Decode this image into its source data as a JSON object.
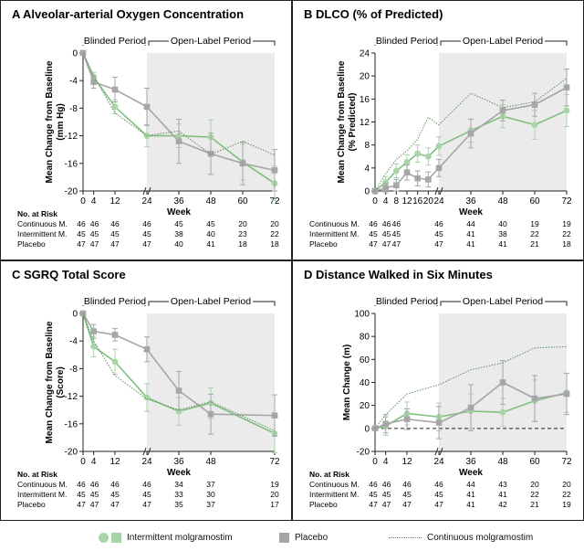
{
  "legend": {
    "intermittent": "Intermittent molgramostim",
    "placebo": "Placebo",
    "continuous": "Continuous molgramostim"
  },
  "colors": {
    "intermittent": "#a8d4a8",
    "intermittent_line": "#7fbf7f",
    "placebo": "#a6a6a6",
    "continuous": "#5a8f5a",
    "shade": "#ebebeb"
  },
  "chart_data": [
    {
      "type": "line",
      "panel_label": "A",
      "title": "Alveolar-arterial Oxygen Concentration",
      "xlabel": "Week",
      "ylabel": "Mean Change from Baseline (mm Hg)",
      "ylabel_lines": [
        "Mean Change from Baseline",
        "(mm Hg)"
      ],
      "x_ticks": [
        0,
        4,
        12,
        24,
        36,
        48,
        60,
        72
      ],
      "y_ticks": [
        0,
        -4,
        -8,
        -12,
        -16,
        -20
      ],
      "xlim": [
        0,
        72
      ],
      "ylim": [
        -20,
        0
      ],
      "zero_line": false,
      "blinded_label": "Blinded Period",
      "openlabel_label": "Open-Label Period",
      "series": [
        {
          "name": "Intermittent molgramostim",
          "x": [
            0,
            4,
            12,
            24,
            36,
            48,
            60,
            72
          ],
          "y": [
            0,
            -3.5,
            -7.8,
            -12.0,
            -12.0,
            -12.2,
            -15.8,
            -18.9
          ],
          "err": [
            0,
            0.7,
            1.0,
            1.6,
            1.7,
            2.5,
            2.6,
            2.5
          ],
          "marker": "circle"
        },
        {
          "name": "Placebo",
          "x": [
            0,
            4,
            12,
            24,
            36,
            48,
            60,
            72
          ],
          "y": [
            0,
            -4.2,
            -5.3,
            -7.8,
            -12.8,
            -14.6,
            -16.0,
            -17.0
          ],
          "err": [
            0,
            0.9,
            1.8,
            2.7,
            3.2,
            3.0,
            3.1,
            3.0
          ],
          "marker": "square"
        },
        {
          "name": "Continuous molgramostim",
          "x": [
            0,
            4,
            12,
            24,
            36,
            48,
            60,
            72
          ],
          "y": [
            0,
            -3.3,
            -8.7,
            -12.0,
            -11.3,
            -14.7,
            -12.8,
            -14.8
          ],
          "err": [],
          "marker": "none"
        }
      ],
      "risk_table": {
        "title": "No. at Risk",
        "columns": [
          "0",
          "4",
          "12",
          "24",
          "36",
          "48",
          "60",
          "72"
        ],
        "rows": [
          {
            "label": "Continuous M.",
            "values": [
              "46",
              "46",
              "46",
              "46",
              "45",
              "45",
              "20",
              "20"
            ]
          },
          {
            "label": "Intermittent M.",
            "values": [
              "45",
              "45",
              "45",
              "45",
              "38",
              "40",
              "23",
              "22"
            ]
          },
          {
            "label": "Placebo",
            "values": [
              "47",
              "47",
              "47",
              "47",
              "40",
              "41",
              "18",
              "18"
            ]
          }
        ]
      }
    },
    {
      "type": "line",
      "panel_label": "B",
      "title": "DLCO (% of Predicted)",
      "xlabel": "Week",
      "ylabel": "Mean Change from Baseline (% Predicted)",
      "ylabel_lines": [
        "Mean Change from Baseline",
        "(% Predicted)"
      ],
      "x_ticks": [
        0,
        4,
        8,
        12,
        16,
        20,
        24,
        36,
        48,
        60,
        72
      ],
      "y_ticks": [
        0,
        4,
        8,
        12,
        16,
        20,
        24
      ],
      "xlim": [
        0,
        72
      ],
      "ylim": [
        0,
        24
      ],
      "zero_line": false,
      "blinded_label": "Blinded Period",
      "openlabel_label": "Open-Label Period",
      "series": [
        {
          "name": "Intermittent molgramostim",
          "x": [
            0,
            4,
            8,
            12,
            16,
            20,
            24,
            36,
            48,
            60,
            72
          ],
          "y": [
            0,
            1.5,
            3.5,
            5.0,
            6.5,
            6.0,
            7.8,
            10.5,
            13.0,
            11.5,
            14.0
          ],
          "err": [
            0,
            1.0,
            1.2,
            1.3,
            1.5,
            1.5,
            1.6,
            2.0,
            2.0,
            2.5,
            2.8
          ],
          "marker": "circle"
        },
        {
          "name": "Placebo",
          "x": [
            0,
            4,
            8,
            12,
            16,
            20,
            24,
            36,
            48,
            60,
            72
          ],
          "y": [
            0,
            0.5,
            1.0,
            3.2,
            2.2,
            2.0,
            4.0,
            10.0,
            14.0,
            15.0,
            18.0
          ],
          "err": [
            0,
            0.8,
            1.0,
            1.3,
            1.3,
            1.3,
            1.5,
            2.5,
            1.8,
            2.0,
            3.2
          ],
          "marker": "square"
        },
        {
          "name": "Continuous molgramostim",
          "x": [
            0,
            4,
            8,
            12,
            16,
            20,
            24,
            36,
            48,
            60,
            72
          ],
          "y": [
            0,
            3.0,
            5.5,
            7.0,
            9.0,
            12.8,
            11.5,
            17.0,
            14.5,
            15.5,
            19.6
          ],
          "err": [],
          "marker": "none"
        }
      ],
      "risk_table": {
        "title": "",
        "columns": [
          "0",
          "4",
          "8",
          "12",
          "24",
          "36",
          "48",
          "60",
          "72"
        ],
        "rows": [
          {
            "label": "Continuous M.",
            "values": [
              "46",
              "46",
              "46",
              "46",
              "44",
              "40",
              "19",
              "19"
            ]
          },
          {
            "label": "Intermittent M.",
            "values": [
              "45",
              "45",
              "45",
              "45",
              "41",
              "38",
              "22",
              "22"
            ]
          },
          {
            "label": "Placebo",
            "values": [
              "47",
              "47",
              "47",
              "47",
              "41",
              "41",
              "21",
              "18"
            ]
          }
        ],
        "value_x": [
          0,
          4,
          8,
          24,
          36,
          48,
          60,
          72
        ]
      }
    },
    {
      "type": "line",
      "panel_label": "C",
      "title": "SGRQ Total Score",
      "xlabel": "Week",
      "ylabel": "Mean Change from Baseline (Score)",
      "ylabel_lines": [
        "Mean Change from Baseline",
        "(Score)"
      ],
      "x_ticks": [
        0,
        4,
        12,
        24,
        36,
        48,
        72
      ],
      "y_ticks": [
        0,
        -4,
        -8,
        -12,
        -16,
        -20
      ],
      "xlim": [
        0,
        72
      ],
      "ylim": [
        -20,
        0
      ],
      "zero_line": false,
      "blinded_label": "Blinded Period",
      "openlabel_label": "Open-Label Period",
      "series": [
        {
          "name": "Intermittent molgramostim",
          "x": [
            0,
            4,
            12,
            24,
            36,
            48,
            72
          ],
          "y": [
            0,
            -4.8,
            -7.0,
            -12.2,
            -14.2,
            -13.0,
            -17.4
          ],
          "err": [
            0,
            1.5,
            1.8,
            2.0,
            2.0,
            2.2,
            2.8
          ],
          "marker": "circle"
        },
        {
          "name": "Placebo",
          "x": [
            0,
            4,
            12,
            24,
            36,
            48,
            72
          ],
          "y": [
            0,
            -2.6,
            -3.1,
            -5.2,
            -11.2,
            -14.6,
            -14.8
          ],
          "err": [
            0,
            1.0,
            0.9,
            1.8,
            2.8,
            2.9,
            3.0
          ],
          "marker": "square"
        },
        {
          "name": "Continuous molgramostim",
          "x": [
            0,
            4,
            12,
            24,
            36,
            48,
            72
          ],
          "y": [
            0,
            -4.0,
            -9.0,
            -12.4,
            -14.0,
            -12.8,
            -17.0
          ],
          "err": [],
          "marker": "none"
        }
      ],
      "risk_table": {
        "title": "No. at Risk",
        "columns": [
          "0",
          "4",
          "12",
          "24",
          "36",
          "48",
          "72"
        ],
        "rows": [
          {
            "label": "Continuous M.",
            "values": [
              "46",
              "46",
              "46",
              "46",
              "34",
              "37",
              "19"
            ]
          },
          {
            "label": "Intermittent M.",
            "values": [
              "45",
              "45",
              "45",
              "45",
              "33",
              "30",
              "20"
            ]
          },
          {
            "label": "Placebo",
            "values": [
              "47",
              "47",
              "47",
              "47",
              "35",
              "37",
              "17"
            ]
          }
        ]
      }
    },
    {
      "type": "line",
      "panel_label": "D",
      "title": "Distance Walked in Six Minutes",
      "xlabel": "Week",
      "ylabel": "Mean Change (m)",
      "ylabel_lines": [
        "Mean Change (m)"
      ],
      "x_ticks": [
        0,
        4,
        12,
        24,
        36,
        48,
        60,
        72
      ],
      "y_ticks": [
        -20,
        0,
        20,
        40,
        60,
        80,
        100
      ],
      "xlim": [
        0,
        72
      ],
      "ylim": [
        -20,
        100
      ],
      "zero_line": true,
      "blinded_label": "Blinded Period",
      "openlabel_label": "Open-Label Period",
      "series": [
        {
          "name": "Intermittent molgramostim",
          "x": [
            0,
            4,
            12,
            24,
            36,
            48,
            60,
            72
          ],
          "y": [
            0,
            2.0,
            13.0,
            10.0,
            15.0,
            14.0,
            24.0,
            31.0
          ],
          "err": [
            0,
            8.0,
            10.0,
            12.0,
            15.0,
            12.0,
            18.0,
            17.0
          ],
          "marker": "circle"
        },
        {
          "name": "Placebo",
          "x": [
            0,
            4,
            12,
            24,
            36,
            48,
            60,
            72
          ],
          "y": [
            0,
            4.0,
            8.0,
            5.0,
            18.0,
            40.0,
            26.0,
            30.0
          ],
          "err": [
            0,
            8.0,
            9.0,
            14.0,
            20.0,
            19.0,
            20.0,
            18.0
          ],
          "marker": "square"
        },
        {
          "name": "Continuous molgramostim",
          "x": [
            0,
            4,
            12,
            24,
            36,
            48,
            60,
            72
          ],
          "y": [
            0,
            12.0,
            30.0,
            38.0,
            51.0,
            57.0,
            70.0,
            71.0
          ],
          "err": [],
          "marker": "none"
        }
      ],
      "risk_table": {
        "title": "No. at Risk",
        "columns": [
          "0",
          "4",
          "12",
          "24",
          "36",
          "48",
          "60",
          "72"
        ],
        "rows": [
          {
            "label": "Continuous M.",
            "values": [
              "46",
              "46",
              "46",
              "46",
              "44",
              "43",
              "20",
              "20"
            ]
          },
          {
            "label": "Intermittent M.",
            "values": [
              "45",
              "45",
              "45",
              "45",
              "41",
              "41",
              "22",
              "22"
            ]
          },
          {
            "label": "Placebo",
            "values": [
              "47",
              "47",
              "47",
              "47",
              "41",
              "42",
              "21",
              "19"
            ]
          }
        ]
      }
    }
  ]
}
